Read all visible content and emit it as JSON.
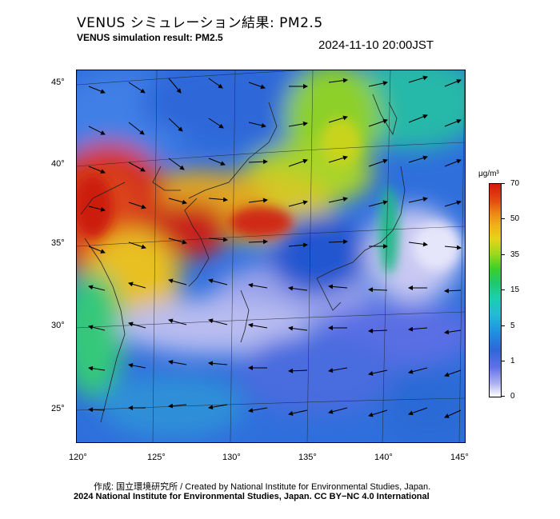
{
  "header": {
    "title_jp": "VENUS シミュレーション結果: PM2.5",
    "title_en": "VENUS simulation result: PM2.5",
    "timestamp": "2024-11-10 20:00JST"
  },
  "map": {
    "lat_labels": [
      "45°",
      "40°",
      "35°",
      "30°",
      "25°"
    ],
    "lon_labels": [
      "120°",
      "125°",
      "130°",
      "135°",
      "140°",
      "145°"
    ]
  },
  "colorbar": {
    "unit": "μg/m³",
    "labels": [
      "70",
      "50",
      "35",
      "15",
      "5",
      "1",
      "0"
    ]
  },
  "footer": {
    "credit": "作成: 国立環境研究所 / Created by National Institute for Environmental Studies, Japan.",
    "license": "2024 National Institute for Environmental Studies, Japan. CC BY−NC 4.0 International"
  }
}
